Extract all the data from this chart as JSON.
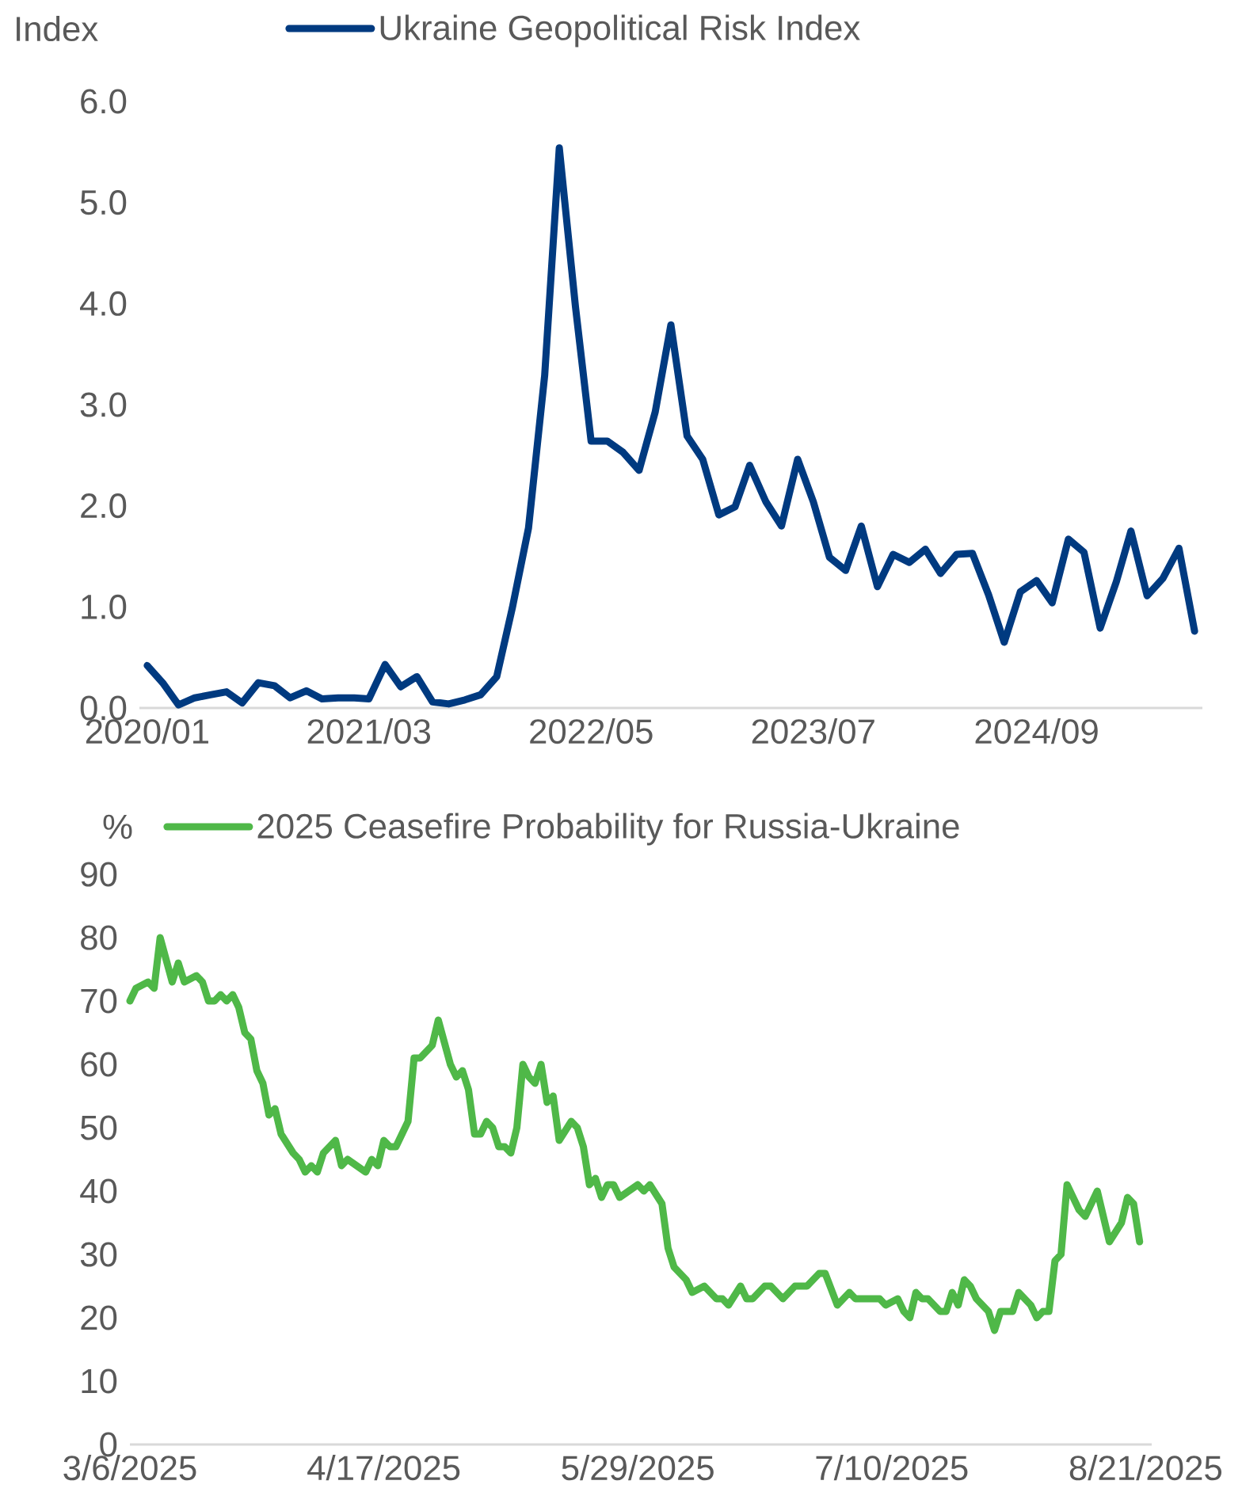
{
  "chart_data": [
    {
      "type": "line",
      "ylabel": "Index",
      "legend": "top",
      "x": [
        "2020-01",
        "2020-02",
        "2020-03",
        "2020-04",
        "2020-05",
        "2020-06",
        "2020-07",
        "2020-08",
        "2020-09",
        "2020-10",
        "2020-11",
        "2020-12",
        "2021-01",
        "2021-02",
        "2021-03",
        "2021-04",
        "2021-05",
        "2021-06",
        "2021-07",
        "2021-08",
        "2021-09",
        "2021-10",
        "2021-11",
        "2021-12",
        "2022-01",
        "2022-02",
        "2022-03",
        "2022-04",
        "2022-05",
        "2022-06",
        "2022-07",
        "2022-08",
        "2022-09",
        "2022-10",
        "2022-11",
        "2022-12",
        "2023-01",
        "2023-02",
        "2023-03",
        "2023-04",
        "2023-05",
        "2023-06",
        "2023-07",
        "2023-08",
        "2023-09",
        "2023-10",
        "2023-11",
        "2023-12",
        "2024-01",
        "2024-02",
        "2024-03",
        "2024-04",
        "2024-05",
        "2024-06",
        "2024-07",
        "2024-08",
        "2024-09",
        "2024-10",
        "2024-11",
        "2024-12",
        "2025-01",
        "2025-02",
        "2025-03",
        "2025-04",
        "2025-05",
        "2025-06",
        "2025-07"
      ],
      "series": [
        {
          "name": "Ukraine Geopolitical Risk Index",
          "color": "#003a80",
          "values": [
            0.42,
            0.24,
            0.03,
            0.1,
            0.13,
            0.16,
            0.05,
            0.25,
            0.22,
            0.1,
            0.17,
            0.09,
            0.1,
            0.1,
            0.09,
            0.43,
            0.21,
            0.31,
            0.06,
            0.04,
            0.08,
            0.13,
            0.31,
            0.99,
            1.78,
            3.29,
            5.54,
            3.97,
            2.64,
            2.64,
            2.53,
            2.35,
            2.93,
            3.79,
            2.69,
            2.46,
            1.91,
            1.99,
            2.4,
            2.04,
            1.8,
            2.46,
            2.04,
            1.49,
            1.36,
            1.8,
            1.2,
            1.52,
            1.44,
            1.57,
            1.33,
            1.52,
            1.53,
            1.12,
            0.65,
            1.15,
            1.26,
            1.04,
            1.67,
            1.54,
            0.79,
            1.25,
            1.75,
            1.11,
            1.28,
            1.58,
            0.76
          ]
        }
      ],
      "xlim": [
        "2019-12-17",
        "2025-07-16"
      ],
      "xticks": [
        {
          "value": "2020-01",
          "label": "2020/01"
        },
        {
          "value": "2021-03",
          "label": "2021/03"
        },
        {
          "value": "2022-05",
          "label": "2022/05"
        },
        {
          "value": "2023-07",
          "label": "2023/07"
        },
        {
          "value": "2024-09",
          "label": "2024/09"
        }
      ],
      "ylim": [
        0,
        6
      ],
      "yticks": [
        {
          "value": 0,
          "label": "0.0"
        },
        {
          "value": 1,
          "label": "1.0"
        },
        {
          "value": 2,
          "label": "2.0"
        },
        {
          "value": 3,
          "label": "3.0"
        },
        {
          "value": 4,
          "label": "4.0"
        },
        {
          "value": 5,
          "label": "5.0"
        },
        {
          "value": 6,
          "label": "6.0"
        }
      ]
    },
    {
      "type": "line",
      "ylabel": "%",
      "legend": "top",
      "x": [
        "2025-03-06",
        "2025-03-07",
        "2025-03-09",
        "2025-03-10",
        "2025-03-11",
        "2025-03-13",
        "2025-03-14",
        "2025-03-15",
        "2025-03-17",
        "2025-03-18",
        "2025-03-19",
        "2025-03-20",
        "2025-03-21",
        "2025-03-22",
        "2025-03-23",
        "2025-03-24",
        "2025-03-25",
        "2025-03-26",
        "2025-03-27",
        "2025-03-28",
        "2025-03-29",
        "2025-03-30",
        "2025-03-31",
        "2025-04-02",
        "2025-04-03",
        "2025-04-04",
        "2025-04-05",
        "2025-04-06",
        "2025-04-07",
        "2025-04-09",
        "2025-04-10",
        "2025-04-11",
        "2025-04-14",
        "2025-04-15",
        "2025-04-16",
        "2025-04-17",
        "2025-04-18",
        "2025-04-19",
        "2025-04-21",
        "2025-04-22",
        "2025-04-23",
        "2025-04-25",
        "2025-04-26",
        "2025-04-28",
        "2025-04-29",
        "2025-04-30",
        "2025-05-01",
        "2025-05-02",
        "2025-05-03",
        "2025-05-04",
        "2025-05-05",
        "2025-05-06",
        "2025-05-07",
        "2025-05-08",
        "2025-05-09",
        "2025-05-10",
        "2025-05-11",
        "2025-05-12",
        "2025-05-13",
        "2025-05-14",
        "2025-05-15",
        "2025-05-16",
        "2025-05-18",
        "2025-05-19",
        "2025-05-20",
        "2025-05-21",
        "2025-05-22",
        "2025-05-23",
        "2025-05-24",
        "2025-05-25",
        "2025-05-26",
        "2025-05-29",
        "2025-05-30",
        "2025-05-31",
        "2025-06-02",
        "2025-06-03",
        "2025-06-04",
        "2025-06-06",
        "2025-06-07",
        "2025-06-09",
        "2025-06-11",
        "2025-06-12",
        "2025-06-13",
        "2025-06-15",
        "2025-06-16",
        "2025-06-17",
        "2025-06-19",
        "2025-06-20",
        "2025-06-22",
        "2025-06-24",
        "2025-06-26",
        "2025-06-28",
        "2025-06-29",
        "2025-07-01",
        "2025-07-03",
        "2025-07-04",
        "2025-07-08",
        "2025-07-09",
        "2025-07-11",
        "2025-07-12",
        "2025-07-13",
        "2025-07-14",
        "2025-07-15",
        "2025-07-16",
        "2025-07-18",
        "2025-07-19",
        "2025-07-20",
        "2025-07-21",
        "2025-07-22",
        "2025-07-23",
        "2025-07-24",
        "2025-07-26",
        "2025-07-27",
        "2025-07-28",
        "2025-07-30",
        "2025-07-31",
        "2025-08-02",
        "2025-08-03",
        "2025-08-04",
        "2025-08-05",
        "2025-08-06",
        "2025-08-07",
        "2025-08-08",
        "2025-08-10",
        "2025-08-11",
        "2025-08-13",
        "2025-08-15",
        "2025-08-17",
        "2025-08-18",
        "2025-08-19",
        "2025-08-20"
      ],
      "series": [
        {
          "name": "2025 Ceasefire Probability for Russia-Ukraine",
          "color": "#4fb848",
          "values": [
            70,
            72,
            73,
            72,
            80,
            73,
            76,
            73,
            74,
            73,
            70,
            70,
            71,
            70,
            71,
            69,
            65,
            64,
            59,
            57,
            52,
            53,
            49,
            46,
            45,
            43,
            44,
            43,
            46,
            48,
            44,
            45,
            43,
            45,
            44,
            48,
            47,
            47,
            51,
            61,
            61,
            63,
            67,
            60,
            58,
            59,
            56,
            49,
            49,
            51,
            50,
            47,
            47,
            46,
            50,
            60,
            58,
            57,
            60,
            54,
            55,
            48,
            51,
            50,
            47,
            41,
            42,
            39,
            41,
            41,
            39,
            41,
            40,
            41,
            38,
            31,
            28,
            26,
            24,
            25,
            23,
            23,
            22,
            25,
            23,
            23,
            25,
            25,
            23,
            25,
            25,
            27,
            27,
            22,
            24,
            23,
            23,
            22,
            23,
            21,
            20,
            24,
            23,
            23,
            21,
            21,
            24,
            22,
            26,
            25,
            23,
            21,
            18,
            21,
            21,
            24,
            22,
            20,
            21,
            21,
            29,
            30,
            41,
            37,
            36,
            40,
            32,
            35,
            39,
            38,
            32
          ]
        }
      ],
      "xlim": [
        "2025-03-06",
        "2025-08-22"
      ],
      "xticks": [
        {
          "value": "2025-03-06",
          "label": "3/6/2025"
        },
        {
          "value": "2025-04-17",
          "label": "4/17/2025"
        },
        {
          "value": "2025-05-29",
          "label": "5/29/2025"
        },
        {
          "value": "2025-07-10",
          "label": "7/10/2025"
        },
        {
          "value": "2025-08-21",
          "label": "8/21/2025"
        }
      ],
      "ylim": [
        0,
        90
      ],
      "yticks": [
        0,
        10,
        20,
        30,
        40,
        50,
        60,
        70,
        80,
        90
      ]
    }
  ]
}
